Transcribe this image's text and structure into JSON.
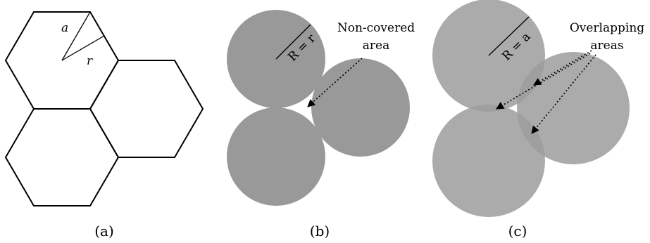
{
  "panels": {
    "a": {
      "caption": "(a)",
      "labels": {
        "apothem": "a",
        "circumradius": "r"
      }
    },
    "b": {
      "caption": "(b)",
      "circle_color": "#999999",
      "radius_label": "R = r",
      "annotation_line1": "Non-covered",
      "annotation_line2": "area"
    },
    "c": {
      "caption": "(c)",
      "circle_color": "#9c9c9c",
      "circle_opacity": 0.85,
      "radius_label": "R = a",
      "annotation_line1": "Overlapping",
      "annotation_line2": "areas"
    }
  },
  "colors": {
    "stroke": "#000000",
    "background": "#ffffff"
  }
}
